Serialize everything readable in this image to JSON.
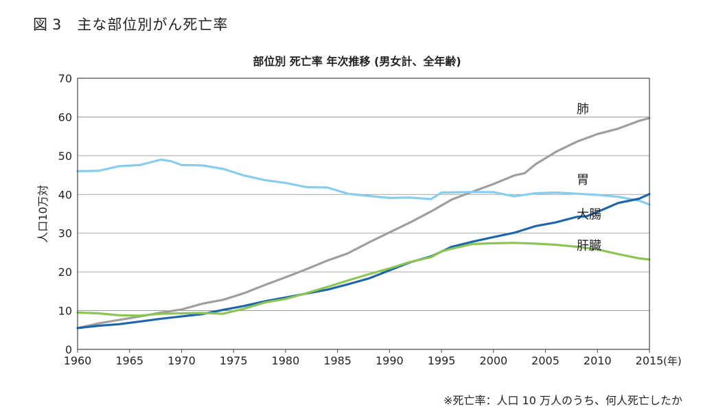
{
  "figure": {
    "label": "図",
    "number": "3",
    "title": "主な部位別がん死亡率"
  },
  "footnote": "※死亡率：人口 10 万人のうち、何人死亡したか",
  "chart_data": {
    "type": "line",
    "title": "部位別 死亡率 年次推移 (男女計、全年齢)",
    "ylabel": "人口10万対",
    "xunit": "(年)",
    "xlim": [
      1960,
      2015
    ],
    "ylim": [
      0,
      70
    ],
    "xticks": [
      1960,
      1965,
      1970,
      1975,
      1980,
      1985,
      1990,
      1995,
      2000,
      2005,
      2010,
      2015
    ],
    "yticks": [
      0,
      10,
      20,
      30,
      40,
      50,
      60,
      70
    ],
    "grid": true,
    "legend": "inline labels",
    "series": [
      {
        "name": "肺",
        "color": "#9e9e9e",
        "label_at": [
          2008,
          61
        ],
        "x": [
          1960,
          1962,
          1964,
          1966,
          1968,
          1970,
          1972,
          1974,
          1976,
          1978,
          1980,
          1982,
          1984,
          1986,
          1988,
          1990,
          1992,
          1994,
          1996,
          1998,
          2000,
          2002,
          2003,
          2004,
          2006,
          2008,
          2010,
          2012,
          2014,
          2015
        ],
        "y": [
          5.5,
          6.7,
          7.6,
          8.5,
          9.5,
          10.3,
          11.8,
          12.8,
          14.5,
          16.6,
          18.6,
          20.7,
          22.9,
          24.8,
          27.6,
          30.2,
          32.8,
          35.6,
          38.7,
          40.7,
          42.7,
          44.9,
          45.5,
          47.7,
          51.0,
          53.6,
          55.6,
          57.0,
          59.0,
          59.7
        ]
      },
      {
        "name": "胃",
        "color": "#86cdee",
        "label_at": [
          2008,
          42.7
        ],
        "x": [
          1960,
          1962,
          1964,
          1966,
          1968,
          1969,
          1970,
          1972,
          1974,
          1976,
          1978,
          1980,
          1982,
          1984,
          1986,
          1988,
          1990,
          1992,
          1994,
          1995,
          1998,
          2000,
          2002,
          2004,
          2006,
          2008,
          2010,
          2012,
          2014,
          2015
        ],
        "y": [
          46.0,
          46.1,
          47.3,
          47.6,
          49.0,
          48.6,
          47.6,
          47.5,
          46.6,
          44.9,
          43.7,
          43.0,
          41.9,
          41.8,
          40.2,
          39.6,
          39.1,
          39.2,
          38.8,
          40.5,
          40.6,
          40.6,
          39.5,
          40.3,
          40.5,
          40.2,
          39.9,
          39.4,
          38.4,
          37.4
        ]
      },
      {
        "name": "大腸",
        "color": "#1d66ad",
        "label_at": [
          2008,
          33.8
        ],
        "x": [
          1960,
          1962,
          1964,
          1966,
          1968,
          1970,
          1972,
          1974,
          1976,
          1978,
          1980,
          1982,
          1984,
          1986,
          1988,
          1990,
          1992,
          1994,
          1996,
          1998,
          2000,
          2002,
          2004,
          2006,
          2008,
          2009,
          2010,
          2012,
          2014,
          2015
        ],
        "y": [
          5.5,
          6.1,
          6.5,
          7.2,
          7.9,
          8.5,
          9.1,
          10.2,
          11.2,
          12.4,
          13.4,
          14.4,
          15.4,
          16.8,
          18.3,
          20.4,
          22.5,
          24.0,
          26.5,
          27.8,
          29.0,
          30.1,
          31.8,
          32.8,
          34.2,
          34.4,
          35.5,
          37.8,
          38.9,
          40.1
        ]
      },
      {
        "name": "肝臓",
        "color": "#8bc653",
        "label_at": [
          2008,
          25.7
        ],
        "x": [
          1960,
          1962,
          1964,
          1966,
          1968,
          1970,
          1972,
          1974,
          1976,
          1978,
          1980,
          1982,
          1984,
          1986,
          1988,
          1990,
          1992,
          1994,
          1995,
          1996,
          1998,
          2000,
          2002,
          2004,
          2006,
          2008,
          2010,
          2012,
          2014,
          2015
        ],
        "y": [
          9.5,
          9.3,
          8.8,
          8.7,
          9.2,
          9.3,
          9.4,
          9.2,
          10.5,
          12.1,
          13.0,
          14.5,
          16.1,
          17.8,
          19.4,
          20.9,
          22.6,
          23.8,
          25.3,
          26.0,
          27.2,
          27.4,
          27.5,
          27.3,
          27.0,
          26.5,
          25.8,
          24.6,
          23.5,
          23.2
        ]
      }
    ]
  }
}
